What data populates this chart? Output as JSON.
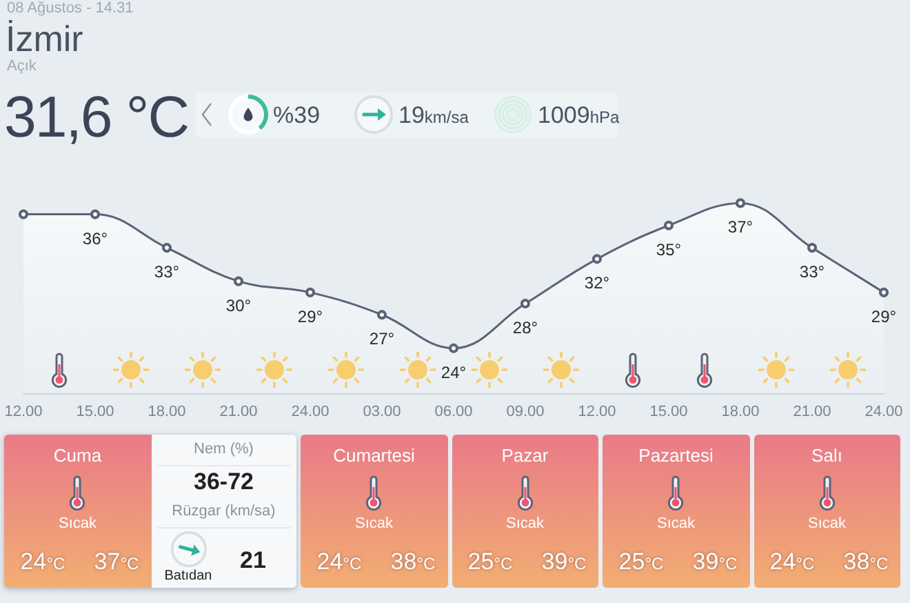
{
  "chart_data": [
    {
      "type": "other",
      "title": "İzmir",
      "subtitle": "Açık",
      "annotations": [
        "08 Ağustos - 14.31",
        "31,6 °C",
        "%39",
        "19km/sa",
        "1009hPa"
      ]
    },
    {
      "type": "area",
      "categories": [
        "12.00",
        "15.00",
        "18.00",
        "21.00",
        "24.00",
        "03.00",
        "06.00",
        "09.00",
        "12.00",
        "15.00",
        "18.00",
        "21.00",
        "24.00"
      ],
      "values": [
        36,
        36,
        33,
        30,
        29,
        27,
        24,
        28,
        32,
        35,
        37,
        33,
        29
      ],
      "value_labels": [
        null,
        "36°",
        "33°",
        "30°",
        "29°",
        "27°",
        "24°",
        "28°",
        "32°",
        "35°",
        "37°",
        "33°",
        "29°"
      ],
      "color": "#5b6377",
      "marker": "circle",
      "tick_labels": "x"
    },
    {
      "type": "other",
      "categories": [
        "Cuma",
        "Cumartesi",
        "Pazar",
        "Pazartesi",
        "Salı"
      ],
      "annotations": [
        "Sıcak",
        "24°C",
        "37°C",
        "Sıcak",
        "24°C",
        "38°C",
        "Sıcak",
        "25°C",
        "39°C",
        "Sıcak",
        "25°C",
        "39°C",
        "Sıcak",
        "24°C",
        "38°C",
        "Nem (%)",
        "36-72",
        "Rüzgar (km/sa)",
        "Batıdan",
        "21"
      ]
    }
  ]
}
